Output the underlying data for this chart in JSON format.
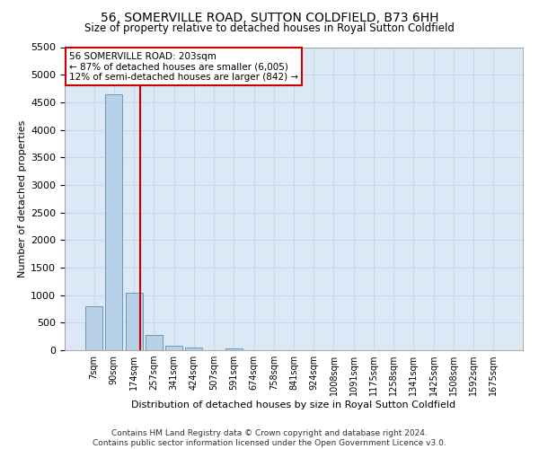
{
  "title": "56, SOMERVILLE ROAD, SUTTON COLDFIELD, B73 6HH",
  "subtitle": "Size of property relative to detached houses in Royal Sutton Coldfield",
  "xlabel": "Distribution of detached houses by size in Royal Sutton Coldfield",
  "ylabel": "Number of detached properties",
  "footer_line1": "Contains HM Land Registry data © Crown copyright and database right 2024.",
  "footer_line2": "Contains public sector information licensed under the Open Government Licence v3.0.",
  "bar_color": "#b8d0e8",
  "bar_edge_color": "#6699bb",
  "grid_color": "#c8d8ea",
  "background_color": "#dce8f5",
  "categories": [
    "7sqm",
    "90sqm",
    "174sqm",
    "257sqm",
    "341sqm",
    "424sqm",
    "507sqm",
    "591sqm",
    "674sqm",
    "758sqm",
    "841sqm",
    "924sqm",
    "1008sqm",
    "1091sqm",
    "1175sqm",
    "1258sqm",
    "1341sqm",
    "1425sqm",
    "1508sqm",
    "1592sqm",
    "1675sqm"
  ],
  "values": [
    800,
    4650,
    1050,
    270,
    75,
    45,
    0,
    30,
    0,
    0,
    0,
    0,
    0,
    0,
    0,
    0,
    0,
    0,
    0,
    0,
    0
  ],
  "property_line_x": 2.3,
  "property_line_color": "#cc0000",
  "annotation_line1": "56 SOMERVILLE ROAD: 203sqm",
  "annotation_line2": "← 87% of detached houses are smaller (6,005)",
  "annotation_line3": "12% of semi-detached houses are larger (842) →",
  "annotation_box_color": "#cc0000",
  "ylim": [
    0,
    5500
  ],
  "yticks": [
    0,
    500,
    1000,
    1500,
    2000,
    2500,
    3000,
    3500,
    4000,
    4500,
    5000,
    5500
  ]
}
